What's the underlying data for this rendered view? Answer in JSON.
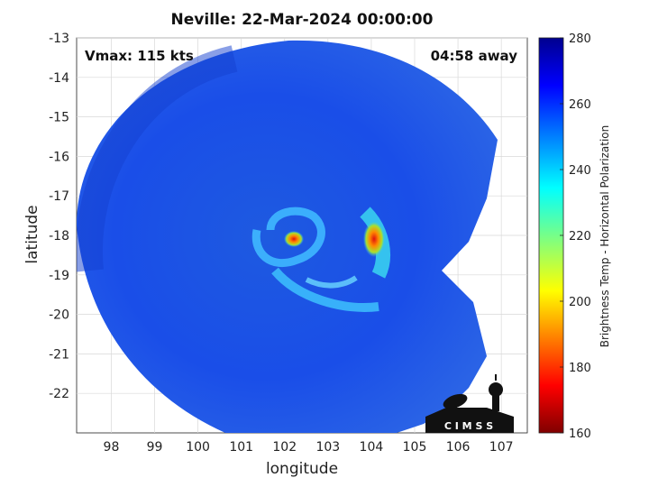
{
  "chart_data": {
    "type": "heatmap",
    "title": "Neville: 22-Mar-2024 00:00:00",
    "xlabel": "longitude",
    "ylabel": "latitude",
    "xlim": [
      97.2,
      107.6
    ],
    "ylim": [
      -23.0,
      -13.0
    ],
    "xticks": [
      98,
      99,
      100,
      101,
      102,
      103,
      104,
      105,
      106,
      107
    ],
    "yticks": [
      -13,
      -14,
      -15,
      -16,
      -17,
      -18,
      -19,
      -20,
      -21,
      -22
    ],
    "grid": true,
    "annotations": {
      "vmax": "Vmax: 115 kts",
      "time_away": "04:58 away"
    },
    "colorbar": {
      "label": "Brightness Temp - Horizontal Polarization",
      "range": [
        160,
        280
      ],
      "ticks": [
        280,
        260,
        240,
        220,
        200,
        180,
        160
      ],
      "colormap": "jet"
    },
    "swath": {
      "background_value": 265,
      "features": [
        {
          "kind": "eye-warm-core",
          "lon": 102.2,
          "lat": -18.1,
          "value": 195
        },
        {
          "kind": "eyewall-rainband",
          "lon": 104.1,
          "lat": -18.2,
          "value": 195
        },
        {
          "kind": "spiral-band",
          "lon": 103.3,
          "lat": -19.6,
          "value": 238
        },
        {
          "kind": "spiral-band",
          "lon": 104.0,
          "lat": -17.5,
          "value": 235
        }
      ]
    },
    "logo": "CIMSS"
  }
}
